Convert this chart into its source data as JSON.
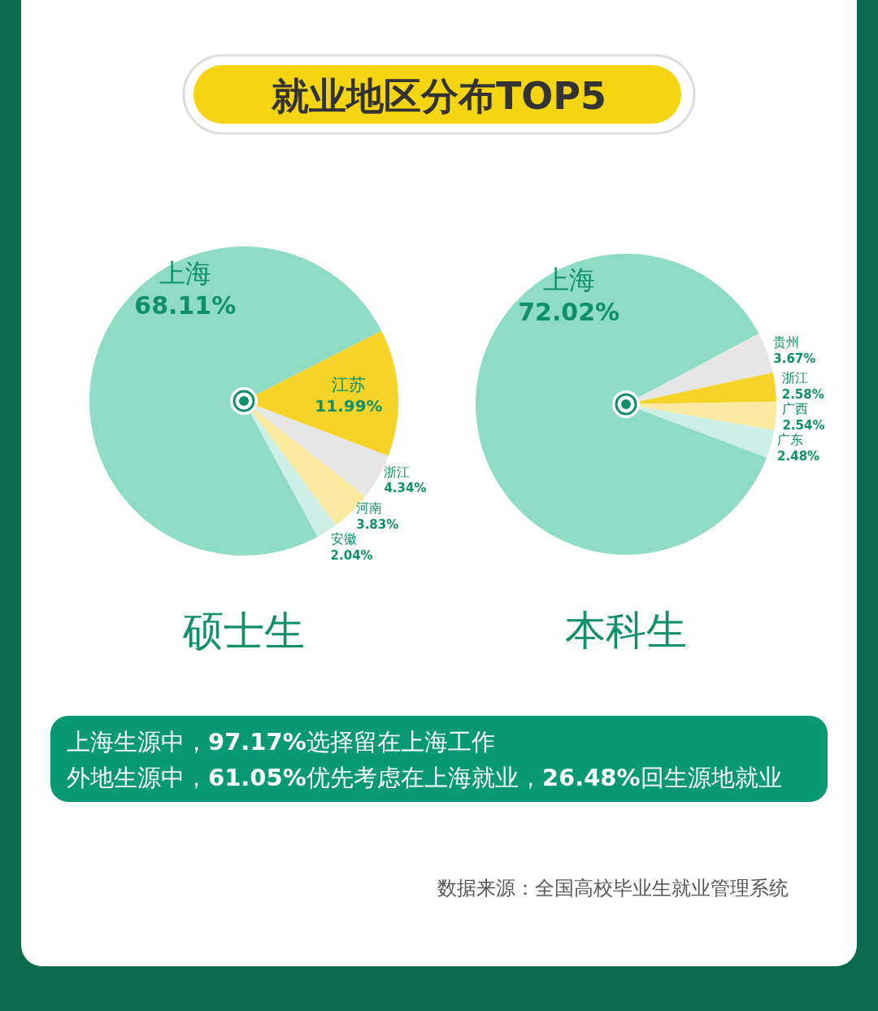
{
  "chart_data": [
    {
      "type": "other",
      "title": "就业地区分布TOP5"
    },
    {
      "type": "pie",
      "title": "硕士生",
      "categories": [
        "上海",
        "江苏",
        "浙江",
        "河南",
        "安徽"
      ],
      "values": [
        68.11,
        11.99,
        4.34,
        3.83,
        2.04
      ],
      "value_labels": [
        "68.11%",
        "11.99%",
        "4.34%",
        "3.83%",
        "2.04%"
      ],
      "colors": [
        "#8fdcc6",
        "#f5d327",
        "#e6e6e6",
        "#fbe9a0",
        "#cdeee4"
      ]
    },
    {
      "type": "pie",
      "title": "本科生",
      "categories": [
        "上海",
        "贵州",
        "浙江",
        "广西",
        "广东"
      ],
      "values": [
        72.02,
        3.67,
        2.58,
        2.54,
        2.48
      ],
      "value_labels": [
        "72.02%",
        "3.67%",
        "2.58%",
        "2.54%",
        "2.48%"
      ],
      "colors": [
        "#8fdcc6",
        "#e6e6e6",
        "#f5d327",
        "#fbe9a0",
        "#cdeee4"
      ]
    },
    {
      "type": "other",
      "annotations": [
        "上海生源中，97.17%选择留在上海工作",
        "外地生源中，61.05%优先考虑在上海就业，26.48%回生源地就业",
        "数据来源：全国高校毕业生就业管理系统"
      ]
    }
  ]
}
